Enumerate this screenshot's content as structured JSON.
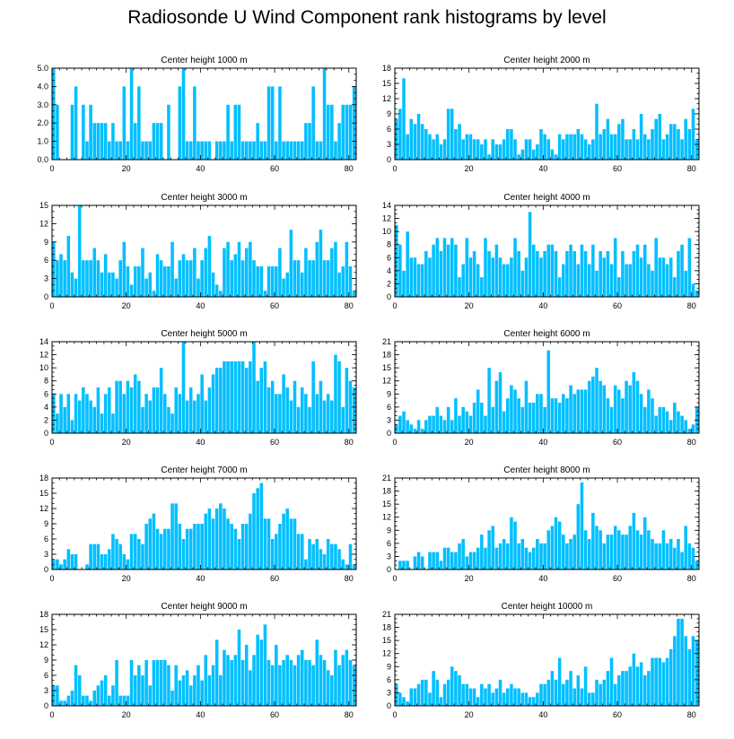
{
  "title": "Radiosonde U Wind Component rank histograms by level",
  "bar_color": "#00bfff",
  "chart_data": [
    {
      "type": "bar",
      "title": "Center height 1000 m",
      "x_ticks": [
        "0",
        "20",
        "40",
        "60",
        "80"
      ],
      "y_ticks": [
        "0.0",
        "1.0",
        "2.0",
        "3.0",
        "4.0",
        "5.0"
      ],
      "ylim": [
        0,
        5
      ],
      "values": [
        5,
        3,
        0,
        0,
        0,
        3,
        4,
        0,
        3,
        1,
        3,
        2,
        2,
        2,
        2,
        1,
        2,
        1,
        1,
        4,
        1,
        5,
        2,
        4,
        1,
        1,
        1,
        2,
        2,
        2,
        0,
        3,
        0,
        0,
        4,
        5,
        1,
        1,
        4,
        1,
        1,
        1,
        1,
        0,
        1,
        1,
        1,
        3,
        1,
        3,
        3,
        1,
        1,
        1,
        1,
        2,
        1,
        1,
        4,
        4,
        1,
        4,
        1,
        1,
        1,
        1,
        1,
        1,
        2,
        2,
        4,
        1,
        1,
        5,
        3,
        3,
        1,
        2,
        3,
        3,
        3,
        4
      ]
    },
    {
      "type": "bar",
      "title": "Center height 2000 m",
      "x_ticks": [
        "0",
        "20",
        "40",
        "60",
        "80"
      ],
      "y_ticks": [
        "0",
        "3",
        "6",
        "9",
        "12",
        "15",
        "18"
      ],
      "ylim": [
        0,
        18
      ],
      "values": [
        8,
        10,
        16,
        5,
        8,
        7,
        9,
        7,
        6,
        5,
        4,
        5,
        3,
        4,
        10,
        10,
        6,
        7,
        4,
        5,
        5,
        4,
        4,
        3,
        4,
        1,
        4,
        3,
        3,
        4,
        6,
        6,
        4,
        1,
        2,
        4,
        4,
        2,
        3,
        6,
        5,
        4,
        2,
        1,
        5,
        4,
        5,
        5,
        5,
        6,
        5,
        4,
        3,
        4,
        11,
        5,
        6,
        8,
        5,
        5,
        7,
        8,
        4,
        4,
        6,
        4,
        9,
        5,
        4,
        6,
        8,
        9,
        4,
        5,
        7,
        7,
        6,
        4,
        8,
        6,
        10,
        4
      ]
    },
    {
      "type": "bar",
      "title": "Center height 3000 m",
      "x_ticks": [
        "0",
        "20",
        "40",
        "60",
        "80"
      ],
      "y_ticks": [
        "0",
        "3",
        "6",
        "9",
        "12",
        "15"
      ],
      "ylim": [
        0,
        15
      ],
      "values": [
        9,
        6,
        7,
        6,
        10,
        4,
        3,
        15,
        6,
        6,
        6,
        8,
        6,
        4,
        7,
        4,
        4,
        3,
        6,
        9,
        5,
        2,
        5,
        5,
        8,
        3,
        4,
        1,
        7,
        6,
        5,
        5,
        9,
        3,
        6,
        7,
        6,
        6,
        8,
        3,
        6,
        8,
        10,
        4,
        2,
        1,
        8,
        9,
        6,
        7,
        9,
        6,
        8,
        9,
        6,
        5,
        5,
        1,
        5,
        5,
        5,
        8,
        3,
        4,
        11,
        6,
        6,
        4,
        8,
        6,
        6,
        9,
        11,
        6,
        6,
        8,
        9,
        4,
        5,
        9,
        5,
        1
      ]
    },
    {
      "type": "bar",
      "title": "Center height 4000 m",
      "x_ticks": [
        "0",
        "20",
        "40",
        "60",
        "80"
      ],
      "y_ticks": [
        "0",
        "2",
        "4",
        "6",
        "8",
        "10",
        "12",
        "14"
      ],
      "ylim": [
        0,
        14
      ],
      "values": [
        11,
        8,
        4,
        10,
        6,
        6,
        5,
        5,
        7,
        6,
        8,
        9,
        7,
        9,
        8,
        9,
        8,
        3,
        5,
        9,
        6,
        7,
        5,
        3,
        9,
        7,
        6,
        8,
        6,
        5,
        5,
        6,
        9,
        7,
        4,
        6,
        13,
        8,
        7,
        6,
        7,
        8,
        8,
        7,
        3,
        5,
        7,
        8,
        7,
        5,
        8,
        7,
        5,
        8,
        4,
        7,
        6,
        7,
        5,
        9,
        3,
        7,
        5,
        5,
        7,
        8,
        6,
        8,
        5,
        4,
        9,
        6,
        6,
        5,
        6,
        3,
        7,
        8,
        4,
        9,
        2,
        1
      ]
    },
    {
      "type": "bar",
      "title": "Center height 5000 m",
      "x_ticks": [
        "0",
        "20",
        "40",
        "60",
        "80"
      ],
      "y_ticks": [
        "0",
        "2",
        "4",
        "6",
        "8",
        "10",
        "12",
        "14"
      ],
      "ylim": [
        0,
        14
      ],
      "values": [
        6,
        3,
        6,
        4,
        6,
        2,
        6,
        5,
        7,
        6,
        5,
        4,
        7,
        3,
        6,
        7,
        3,
        8,
        8,
        6,
        8,
        7,
        9,
        8,
        4,
        6,
        5,
        7,
        7,
        10,
        6,
        4,
        3,
        7,
        6,
        14,
        5,
        7,
        5,
        6,
        9,
        5,
        7,
        9,
        10,
        10,
        11,
        11,
        11,
        11,
        11,
        11,
        10,
        11,
        14,
        8,
        10,
        11,
        7,
        8,
        6,
        6,
        9,
        7,
        5,
        8,
        4,
        7,
        6,
        4,
        11,
        6,
        8,
        5,
        6,
        5,
        12,
        11,
        4,
        10,
        8,
        7
      ]
    },
    {
      "type": "bar",
      "title": "Center height 6000 m",
      "x_ticks": [
        "0",
        "20",
        "40",
        "60",
        "80"
      ],
      "y_ticks": [
        "0",
        "3",
        "6",
        "9",
        "12",
        "15",
        "18",
        "21"
      ],
      "ylim": [
        0,
        21
      ],
      "values": [
        2,
        4,
        5,
        3,
        2,
        1,
        3,
        1,
        3,
        4,
        4,
        6,
        4,
        3,
        6,
        3,
        8,
        4,
        6,
        5,
        4,
        7,
        10,
        7,
        4,
        15,
        6,
        12,
        14,
        5,
        8,
        11,
        10,
        8,
        6,
        12,
        7,
        7,
        9,
        9,
        6,
        19,
        8,
        8,
        7,
        9,
        8,
        11,
        9,
        10,
        10,
        10,
        12,
        13,
        15,
        12,
        11,
        8,
        6,
        11,
        10,
        8,
        12,
        11,
        14,
        12,
        9,
        6,
        10,
        8,
        4,
        6,
        6,
        5,
        3,
        7,
        5,
        4,
        3,
        1,
        2,
        6
      ]
    },
    {
      "type": "bar",
      "title": "Center height 7000 m",
      "x_ticks": [
        "0",
        "20",
        "40",
        "60",
        "80"
      ],
      "y_ticks": [
        "0",
        "3",
        "6",
        "9",
        "12",
        "15",
        "18"
      ],
      "ylim": [
        0,
        18
      ],
      "values": [
        2,
        2,
        1,
        2,
        4,
        3,
        3,
        0,
        0,
        1,
        5,
        5,
        5,
        3,
        3,
        4,
        7,
        6,
        5,
        3,
        2,
        7,
        7,
        6,
        5,
        9,
        10,
        11,
        8,
        7,
        8,
        8,
        13,
        13,
        9,
        6,
        8,
        8,
        9,
        9,
        9,
        11,
        12,
        10,
        12,
        13,
        12,
        10,
        9,
        8,
        6,
        9,
        9,
        11,
        15,
        16,
        17,
        10,
        10,
        6,
        7,
        9,
        11,
        12,
        10,
        10,
        7,
        7,
        2,
        6,
        5,
        6,
        4,
        3,
        6,
        5,
        5,
        4,
        2,
        1,
        5,
        1
      ]
    },
    {
      "type": "bar",
      "title": "Center height 8000 m",
      "x_ticks": [
        "0",
        "20",
        "40",
        "60",
        "80"
      ],
      "y_ticks": [
        "0",
        "3",
        "6",
        "9",
        "12",
        "15",
        "18",
        "21"
      ],
      "ylim": [
        0,
        21
      ],
      "values": [
        0,
        2,
        2,
        2,
        0,
        3,
        4,
        3,
        0,
        4,
        4,
        4,
        2,
        5,
        5,
        4,
        4,
        6,
        7,
        3,
        4,
        4,
        5,
        8,
        5,
        9,
        10,
        5,
        6,
        7,
        6,
        12,
        11,
        6,
        7,
        5,
        4,
        5,
        7,
        6,
        6,
        9,
        10,
        12,
        11,
        8,
        6,
        7,
        8,
        15,
        20,
        9,
        7,
        13,
        10,
        9,
        6,
        8,
        8,
        10,
        9,
        8,
        8,
        10,
        13,
        9,
        8,
        12,
        9,
        7,
        6,
        6,
        9,
        6,
        7,
        5,
        7,
        4,
        10,
        6,
        5,
        2
      ]
    },
    {
      "type": "bar",
      "title": "Center height 9000 m",
      "x_ticks": [
        "0",
        "20",
        "40",
        "60",
        "80"
      ],
      "y_ticks": [
        "0",
        "3",
        "6",
        "9",
        "12",
        "15",
        "18"
      ],
      "ylim": [
        0,
        18
      ],
      "values": [
        4,
        4,
        1,
        1,
        2,
        3,
        8,
        6,
        2,
        2,
        1,
        3,
        4,
        5,
        6,
        2,
        4,
        9,
        2,
        2,
        2,
        9,
        6,
        8,
        6,
        9,
        4,
        9,
        9,
        9,
        9,
        8,
        3,
        8,
        5,
        6,
        7,
        4,
        6,
        8,
        5,
        10,
        6,
        8,
        13,
        6,
        11,
        10,
        9,
        10,
        15,
        9,
        12,
        7,
        10,
        14,
        13,
        16,
        9,
        8,
        12,
        8,
        9,
        10,
        9,
        8,
        10,
        11,
        9,
        9,
        8,
        13,
        10,
        9,
        7,
        6,
        11,
        8,
        10,
        11,
        9,
        8
      ]
    },
    {
      "type": "bar",
      "title": "Center height 10000 m",
      "x_ticks": [
        "0",
        "20",
        "40",
        "60",
        "80"
      ],
      "y_ticks": [
        "0",
        "3",
        "6",
        "9",
        "12",
        "15",
        "18",
        "21"
      ],
      "ylim": [
        0,
        21
      ],
      "values": [
        5,
        3,
        2,
        1,
        4,
        4,
        5,
        6,
        6,
        3,
        8,
        6,
        2,
        5,
        6,
        9,
        8,
        7,
        5,
        5,
        4,
        4,
        2,
        5,
        4,
        5,
        3,
        4,
        6,
        3,
        4,
        5,
        4,
        4,
        3,
        3,
        2,
        2,
        3,
        5,
        5,
        6,
        8,
        6,
        11,
        5,
        6,
        8,
        4,
        7,
        4,
        9,
        3,
        3,
        6,
        5,
        6,
        8,
        11,
        5,
        7,
        8,
        8,
        9,
        12,
        9,
        10,
        7,
        8,
        11,
        11,
        11,
        10,
        11,
        13,
        16,
        20,
        20,
        16,
        13,
        16,
        15
      ]
    }
  ]
}
